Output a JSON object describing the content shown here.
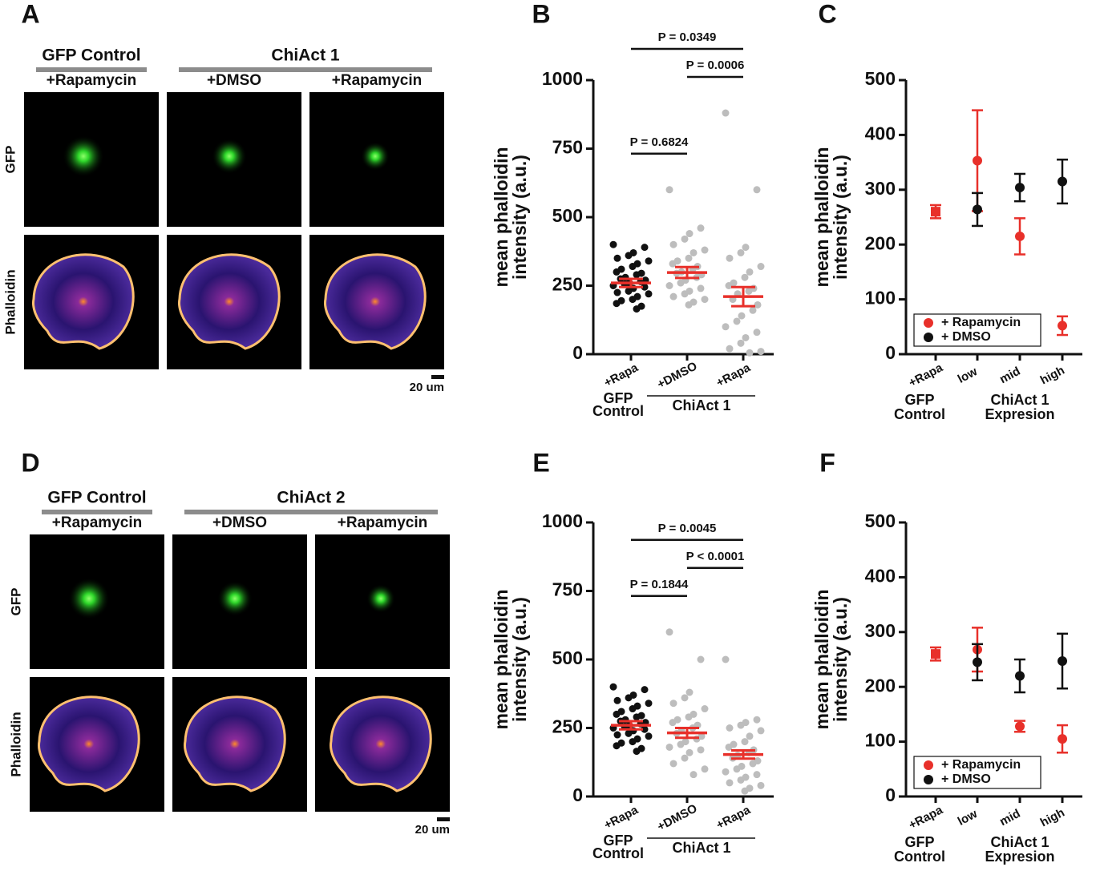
{
  "image_panels": [
    {
      "panel": "A",
      "group_labels": [
        "GFP Control",
        "ChiAct 1"
      ],
      "conditions": [
        "+Rapamycin",
        "+DMSO",
        "+Rapamycin"
      ],
      "rows": [
        "GFP",
        "Phalloidin"
      ],
      "scale_bar": "20 um"
    },
    {
      "panel": "D",
      "group_labels": [
        "GFP Control",
        "ChiAct 2"
      ],
      "conditions": [
        "+Rapamycin",
        "+DMSO",
        "+Rapamycin"
      ],
      "rows": [
        "GFP",
        "Phalloidin"
      ],
      "scale_bar": "20 um"
    }
  ],
  "chart_data": [
    {
      "type": "strip",
      "panel": "B",
      "y_label": [
        "mean phalloidin",
        "intensity (a.u.)"
      ],
      "categories": [
        "+Rapa",
        "+DMSO",
        "+Rapa"
      ],
      "group_labels": [
        [
          "GFP",
          "Control"
        ],
        [
          "ChiAct 1"
        ]
      ],
      "ylim": [
        0,
        1000
      ],
      "yticks": [
        0,
        250,
        500,
        750,
        1000
      ],
      "series": [
        {
          "color": "#111111",
          "values": [
            400,
            390,
            370,
            360,
            350,
            340,
            330,
            320,
            310,
            300,
            295,
            290,
            280,
            275,
            270,
            265,
            260,
            255,
            250,
            245,
            240,
            230,
            225,
            220,
            210,
            200,
            195,
            185,
            175,
            165
          ]
        },
        {
          "color": "#bdbdbd",
          "values": [
            600,
            460,
            440,
            420,
            400,
            380,
            370,
            350,
            340,
            330,
            320,
            310,
            300,
            295,
            290,
            280,
            270,
            260,
            250,
            240,
            230,
            220,
            210,
            200,
            190,
            180
          ]
        },
        {
          "color": "#bdbdbd",
          "values": [
            880,
            600,
            390,
            370,
            350,
            320,
            300,
            280,
            260,
            250,
            240,
            230,
            220,
            200,
            180,
            160,
            140,
            120,
            100,
            80,
            60,
            40,
            20,
            10,
            5
          ]
        }
      ],
      "mean": [
        260,
        298,
        210
      ],
      "sem": [
        15,
        20,
        35
      ],
      "mean_color": "#e8302a",
      "brackets": [
        {
          "label": "P = 0.0349",
          "between": [
            0,
            2
          ]
        },
        {
          "label": "P = 0.0006",
          "between": [
            1,
            2
          ]
        },
        {
          "label": "P = 0.6824",
          "between": [
            0,
            1
          ]
        }
      ]
    },
    {
      "type": "errorbar",
      "panel": "C",
      "y_label": [
        "mean phalloidin",
        "intensity (a.u.)"
      ],
      "categories": [
        "+Rapa",
        "low",
        "mid",
        "high"
      ],
      "group_labels": [
        [
          "GFP",
          "Control"
        ],
        [
          "ChiAct 1",
          "Expresion"
        ]
      ],
      "ylim": [
        0,
        500
      ],
      "yticks": [
        0,
        100,
        200,
        300,
        400,
        500
      ],
      "legend": "lower left",
      "series": [
        {
          "name": "+ Rapamycin",
          "color": "#e8302a",
          "values": [
            260,
            353,
            215,
            52
          ],
          "errors": [
            12,
            92,
            33,
            17
          ]
        },
        {
          "name": "+ DMSO",
          "color": "#111111",
          "values": [
            null,
            264,
            304,
            315
          ],
          "errors": [
            null,
            30,
            25,
            40
          ]
        }
      ]
    },
    {
      "type": "strip",
      "panel": "E",
      "y_label": [
        "mean phalloidin",
        "intensity (a.u.)"
      ],
      "categories": [
        "+Rapa",
        "+DMSO",
        "+Rapa"
      ],
      "group_labels": [
        [
          "GFP",
          "Control"
        ],
        [
          "ChiAct 1"
        ]
      ],
      "ylim": [
        0,
        1000
      ],
      "yticks": [
        0,
        250,
        500,
        750,
        1000
      ],
      "series": [
        {
          "color": "#111111",
          "values": [
            400,
            390,
            370,
            360,
            350,
            340,
            330,
            320,
            310,
            300,
            295,
            290,
            280,
            275,
            270,
            265,
            260,
            255,
            250,
            245,
            240,
            230,
            225,
            220,
            210,
            200,
            195,
            185,
            175,
            165
          ]
        },
        {
          "color": "#bdbdbd",
          "values": [
            600,
            500,
            380,
            360,
            340,
            320,
            300,
            290,
            280,
            270,
            260,
            250,
            240,
            230,
            220,
            210,
            200,
            190,
            180,
            170,
            160,
            140,
            120,
            100,
            80
          ]
        },
        {
          "color": "#bdbdbd",
          "values": [
            500,
            280,
            270,
            260,
            250,
            240,
            220,
            200,
            190,
            180,
            170,
            160,
            150,
            140,
            130,
            120,
            110,
            100,
            90,
            80,
            70,
            60,
            50,
            40,
            30,
            20
          ]
        }
      ],
      "mean": [
        260,
        232,
        153
      ],
      "sem": [
        15,
        18,
        15
      ],
      "mean_color": "#e8302a",
      "brackets": [
        {
          "label": "P = 0.0045",
          "between": [
            0,
            2
          ]
        },
        {
          "label": "P < 0.0001",
          "between": [
            1,
            2
          ]
        },
        {
          "label": "P = 0.1844",
          "between": [
            0,
            1
          ]
        }
      ]
    },
    {
      "type": "errorbar",
      "panel": "F",
      "y_label": [
        "mean phalloidin",
        "intensity (a.u.)"
      ],
      "categories": [
        "+Rapa",
        "low",
        "mid",
        "high"
      ],
      "group_labels": [
        [
          "GFP",
          "Control"
        ],
        [
          "ChiAct 1",
          "Expresion"
        ]
      ],
      "ylim": [
        0,
        500
      ],
      "yticks": [
        0,
        100,
        200,
        300,
        400,
        500
      ],
      "legend": "lower left",
      "series": [
        {
          "name": "+ Rapamycin",
          "color": "#e8302a",
          "values": [
            260,
            268,
            128,
            105
          ],
          "errors": [
            12,
            40,
            10,
            25
          ]
        },
        {
          "name": "+ DMSO",
          "color": "#111111",
          "values": [
            null,
            245,
            220,
            247
          ],
          "errors": [
            null,
            33,
            30,
            50
          ]
        }
      ]
    }
  ]
}
